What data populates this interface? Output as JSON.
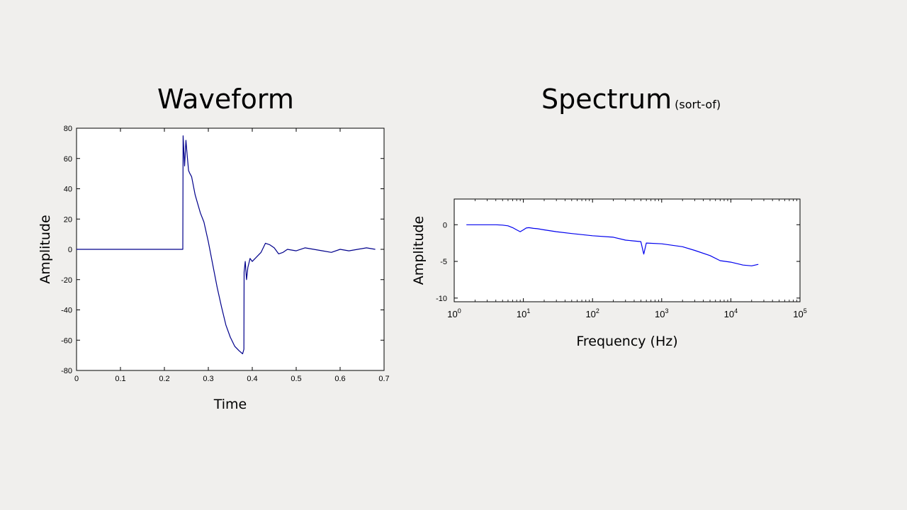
{
  "slide": {
    "waveform_title": "Waveform",
    "spectrum_title": "Spectrum",
    "spectrum_subtitle": "(sort-of)"
  },
  "chart_data": [
    {
      "type": "line",
      "title": "Waveform",
      "xlabel": "Time",
      "ylabel": "Amplitude",
      "xlim": [
        0,
        0.7
      ],
      "ylim": [
        -80,
        80
      ],
      "x_ticks": [
        0,
        0.1,
        0.2,
        0.3,
        0.4,
        0.5,
        0.6,
        0.7
      ],
      "x_tick_labels": [
        "0",
        "0.1",
        "0.2",
        "0.3",
        "0.4",
        "0.5",
        "0.6",
        "0.7"
      ],
      "y_ticks": [
        -80,
        -60,
        -40,
        -20,
        0,
        20,
        40,
        60,
        80
      ],
      "y_tick_labels": [
        "-80",
        "-60",
        "-40",
        "-20",
        "0",
        "20",
        "40",
        "60",
        "80"
      ],
      "grid": false,
      "line_color": "#00008b",
      "series": [
        {
          "x": [
            0,
            0.242,
            0.2425,
            0.246,
            0.249,
            0.252,
            0.255,
            0.258,
            0.262,
            0.266,
            0.27,
            0.276,
            0.282,
            0.29,
            0.3,
            0.31,
            0.32,
            0.33,
            0.34,
            0.35,
            0.36,
            0.37,
            0.378,
            0.381,
            0.3815,
            0.384,
            0.387,
            0.39,
            0.395,
            0.4,
            0.41,
            0.42,
            0.43,
            0.44,
            0.45,
            0.46,
            0.47,
            0.48,
            0.5,
            0.52,
            0.54,
            0.56,
            0.58,
            0.6,
            0.62,
            0.64,
            0.66,
            0.68
          ],
          "y": [
            0,
            0,
            75,
            55,
            72,
            62,
            52,
            50,
            48,
            42,
            36,
            30,
            24,
            18,
            5,
            -10,
            -25,
            -38,
            -50,
            -58,
            -64,
            -67,
            -69,
            -66,
            -15,
            -8,
            -20,
            -12,
            -6,
            -8,
            -5,
            -2,
            4,
            3,
            1,
            -3,
            -2,
            0,
            -1,
            1,
            0,
            -1,
            -2,
            0,
            -1,
            0,
            1,
            0
          ]
        }
      ]
    },
    {
      "type": "line",
      "title": "Spectrum (sort-of)",
      "xlabel": "Frequency (Hz)",
      "ylabel": "Amplitude",
      "xscale": "log",
      "xlim": [
        1,
        100000
      ],
      "ylim": [
        -10.5,
        3.5
      ],
      "x_ticks": [
        1,
        10,
        100,
        1000,
        10000,
        100000
      ],
      "x_tick_labels": [
        "10^0",
        "10^1",
        "10^2",
        "10^3",
        "10^4",
        "10^5"
      ],
      "y_ticks": [
        0,
        -5,
        -10
      ],
      "y_tick_labels": [
        "0",
        "-5",
        "-10"
      ],
      "grid": false,
      "line_color": "#0000ee",
      "series": [
        {
          "x": [
            1.5,
            2,
            3,
            4,
            5,
            6,
            7,
            8,
            9,
            10,
            11,
            12,
            14,
            16,
            20,
            30,
            50,
            100,
            200,
            300,
            500,
            550,
            600,
            1000,
            2000,
            3000,
            5000,
            7000,
            10000,
            15000,
            20000,
            25000
          ],
          "y": [
            0,
            0,
            0,
            0,
            -0.05,
            -0.15,
            -0.4,
            -0.7,
            -0.95,
            -0.7,
            -0.45,
            -0.4,
            -0.5,
            -0.55,
            -0.7,
            -0.95,
            -1.2,
            -1.5,
            -1.7,
            -2.1,
            -2.3,
            -4,
            -2.5,
            -2.6,
            -3.0,
            -3.5,
            -4.2,
            -4.9,
            -5.1,
            -5.5,
            -5.6,
            -5.4
          ]
        }
      ]
    }
  ]
}
